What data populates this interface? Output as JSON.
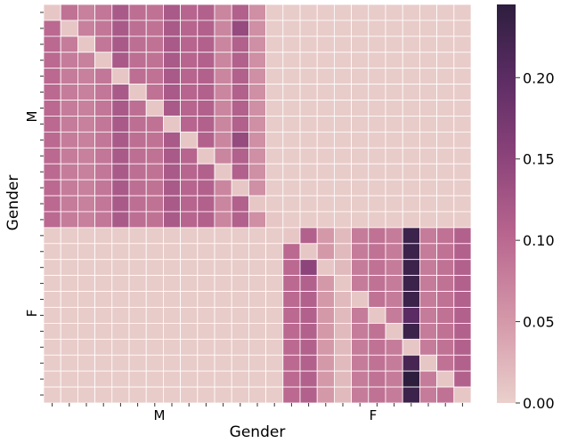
{
  "chart_data": {
    "type": "heatmap",
    "title": "",
    "xlabel": "Gender",
    "ylabel": "Gender",
    "x_group_labels": [
      "M",
      "F"
    ],
    "y_group_labels": [
      "M",
      "F"
    ],
    "group_sizes": [
      14,
      11
    ],
    "n": 25,
    "colorbar": {
      "min": 0.0,
      "max": 0.245,
      "ticks": [
        0.0,
        0.05,
        0.1,
        0.15,
        0.2
      ],
      "tick_labels": [
        "0.00",
        "0.05",
        "0.10",
        "0.15",
        "0.20"
      ],
      "colors": [
        "#ead0cc",
        "#d59aaa",
        "#b9668f",
        "#8b437a",
        "#5a2c63",
        "#2d1e3e"
      ]
    },
    "matrix": [
      [
        0.008,
        0.09,
        0.075,
        0.085,
        0.12,
        0.095,
        0.09,
        0.12,
        0.105,
        0.11,
        0.07,
        0.11,
        0.06,
        0.004,
        0.004,
        0.004,
        0.004,
        0.004,
        0.004,
        0.004,
        0.004,
        0.004,
        0.004,
        0.004,
        0.004
      ],
      [
        0.1,
        0.008,
        0.075,
        0.085,
        0.12,
        0.095,
        0.09,
        0.12,
        0.105,
        0.11,
        0.07,
        0.14,
        0.06,
        0.004,
        0.004,
        0.004,
        0.004,
        0.004,
        0.004,
        0.004,
        0.004,
        0.004,
        0.004,
        0.004,
        0.004
      ],
      [
        0.1,
        0.08,
        0.008,
        0.085,
        0.12,
        0.095,
        0.09,
        0.12,
        0.105,
        0.11,
        0.07,
        0.11,
        0.06,
        0.004,
        0.004,
        0.004,
        0.004,
        0.004,
        0.004,
        0.004,
        0.004,
        0.004,
        0.004,
        0.004,
        0.004
      ],
      [
        0.1,
        0.08,
        0.075,
        0.008,
        0.12,
        0.095,
        0.09,
        0.12,
        0.105,
        0.11,
        0.07,
        0.11,
        0.06,
        0.004,
        0.004,
        0.004,
        0.004,
        0.004,
        0.004,
        0.004,
        0.004,
        0.004,
        0.004,
        0.004,
        0.004
      ],
      [
        0.1,
        0.08,
        0.075,
        0.085,
        0.008,
        0.095,
        0.09,
        0.12,
        0.105,
        0.11,
        0.07,
        0.11,
        0.06,
        0.004,
        0.004,
        0.004,
        0.004,
        0.004,
        0.004,
        0.004,
        0.004,
        0.004,
        0.004,
        0.004,
        0.004
      ],
      [
        0.1,
        0.08,
        0.075,
        0.085,
        0.12,
        0.008,
        0.09,
        0.12,
        0.105,
        0.11,
        0.07,
        0.11,
        0.06,
        0.004,
        0.004,
        0.004,
        0.004,
        0.004,
        0.004,
        0.004,
        0.004,
        0.004,
        0.004,
        0.004,
        0.004
      ],
      [
        0.1,
        0.08,
        0.075,
        0.085,
        0.12,
        0.095,
        0.008,
        0.12,
        0.105,
        0.11,
        0.07,
        0.11,
        0.06,
        0.004,
        0.004,
        0.004,
        0.004,
        0.004,
        0.004,
        0.004,
        0.004,
        0.004,
        0.004,
        0.004,
        0.004
      ],
      [
        0.1,
        0.08,
        0.075,
        0.085,
        0.12,
        0.095,
        0.09,
        0.008,
        0.105,
        0.11,
        0.07,
        0.11,
        0.06,
        0.004,
        0.004,
        0.004,
        0.004,
        0.004,
        0.004,
        0.004,
        0.004,
        0.004,
        0.004,
        0.004,
        0.004
      ],
      [
        0.1,
        0.08,
        0.075,
        0.085,
        0.12,
        0.095,
        0.09,
        0.12,
        0.008,
        0.11,
        0.07,
        0.14,
        0.06,
        0.004,
        0.004,
        0.004,
        0.004,
        0.004,
        0.004,
        0.004,
        0.004,
        0.004,
        0.004,
        0.004,
        0.004
      ],
      [
        0.1,
        0.08,
        0.075,
        0.085,
        0.12,
        0.095,
        0.09,
        0.12,
        0.105,
        0.008,
        0.07,
        0.11,
        0.06,
        0.004,
        0.004,
        0.004,
        0.004,
        0.004,
        0.004,
        0.004,
        0.004,
        0.004,
        0.004,
        0.004,
        0.004
      ],
      [
        0.1,
        0.08,
        0.075,
        0.085,
        0.12,
        0.095,
        0.09,
        0.12,
        0.105,
        0.11,
        0.008,
        0.11,
        0.06,
        0.004,
        0.004,
        0.004,
        0.004,
        0.004,
        0.004,
        0.004,
        0.004,
        0.004,
        0.004,
        0.004,
        0.004
      ],
      [
        0.1,
        0.08,
        0.075,
        0.085,
        0.12,
        0.095,
        0.09,
        0.12,
        0.105,
        0.11,
        0.07,
        0.008,
        0.06,
        0.004,
        0.004,
        0.004,
        0.004,
        0.004,
        0.004,
        0.004,
        0.004,
        0.004,
        0.004,
        0.004,
        0.004
      ],
      [
        0.1,
        0.08,
        0.075,
        0.085,
        0.12,
        0.095,
        0.09,
        0.12,
        0.105,
        0.11,
        0.07,
        0.11,
        0.008,
        0.004,
        0.004,
        0.004,
        0.004,
        0.004,
        0.004,
        0.004,
        0.004,
        0.004,
        0.004,
        0.004,
        0.004
      ],
      [
        0.1,
        0.08,
        0.075,
        0.085,
        0.12,
        0.095,
        0.09,
        0.12,
        0.105,
        0.11,
        0.07,
        0.11,
        0.06,
        0.008,
        0.004,
        0.004,
        0.004,
        0.004,
        0.004,
        0.004,
        0.004,
        0.004,
        0.004,
        0.004,
        0.004
      ],
      [
        0.004,
        0.004,
        0.004,
        0.004,
        0.004,
        0.004,
        0.004,
        0.004,
        0.004,
        0.004,
        0.004,
        0.004,
        0.004,
        0.004,
        0.008,
        0.11,
        0.05,
        0.02,
        0.08,
        0.09,
        0.08,
        0.23,
        0.08,
        0.09,
        0.11
      ],
      [
        0.004,
        0.004,
        0.004,
        0.004,
        0.004,
        0.004,
        0.004,
        0.004,
        0.004,
        0.004,
        0.004,
        0.004,
        0.004,
        0.004,
        0.1,
        0.008,
        0.05,
        0.02,
        0.08,
        0.09,
        0.08,
        0.23,
        0.08,
        0.09,
        0.11
      ],
      [
        0.004,
        0.004,
        0.004,
        0.004,
        0.004,
        0.004,
        0.004,
        0.004,
        0.004,
        0.004,
        0.004,
        0.004,
        0.004,
        0.004,
        0.1,
        0.15,
        0.008,
        0.02,
        0.08,
        0.09,
        0.08,
        0.23,
        0.08,
        0.09,
        0.11
      ],
      [
        0.004,
        0.004,
        0.004,
        0.004,
        0.004,
        0.004,
        0.004,
        0.004,
        0.004,
        0.004,
        0.004,
        0.004,
        0.004,
        0.004,
        0.1,
        0.11,
        0.05,
        0.008,
        0.08,
        0.09,
        0.08,
        0.23,
        0.08,
        0.09,
        0.11
      ],
      [
        0.004,
        0.004,
        0.004,
        0.004,
        0.004,
        0.004,
        0.004,
        0.004,
        0.004,
        0.004,
        0.004,
        0.004,
        0.004,
        0.004,
        0.1,
        0.11,
        0.05,
        0.02,
        0.008,
        0.09,
        0.08,
        0.23,
        0.08,
        0.09,
        0.11
      ],
      [
        0.004,
        0.004,
        0.004,
        0.004,
        0.004,
        0.004,
        0.004,
        0.004,
        0.004,
        0.004,
        0.004,
        0.004,
        0.004,
        0.004,
        0.1,
        0.11,
        0.05,
        0.02,
        0.08,
        0.008,
        0.08,
        0.2,
        0.08,
        0.09,
        0.11
      ],
      [
        0.004,
        0.004,
        0.004,
        0.004,
        0.004,
        0.004,
        0.004,
        0.004,
        0.004,
        0.004,
        0.004,
        0.004,
        0.004,
        0.004,
        0.1,
        0.11,
        0.05,
        0.02,
        0.08,
        0.09,
        0.008,
        0.23,
        0.08,
        0.09,
        0.11
      ],
      [
        0.004,
        0.004,
        0.004,
        0.004,
        0.004,
        0.004,
        0.004,
        0.004,
        0.004,
        0.004,
        0.004,
        0.004,
        0.004,
        0.004,
        0.1,
        0.11,
        0.05,
        0.02,
        0.08,
        0.09,
        0.08,
        0.008,
        0.08,
        0.09,
        0.11
      ],
      [
        0.004,
        0.004,
        0.004,
        0.004,
        0.004,
        0.004,
        0.004,
        0.004,
        0.004,
        0.004,
        0.004,
        0.004,
        0.004,
        0.004,
        0.1,
        0.11,
        0.05,
        0.02,
        0.08,
        0.09,
        0.08,
        0.22,
        0.008,
        0.09,
        0.11
      ],
      [
        0.004,
        0.004,
        0.004,
        0.004,
        0.004,
        0.004,
        0.004,
        0.004,
        0.004,
        0.004,
        0.004,
        0.004,
        0.004,
        0.004,
        0.1,
        0.11,
        0.05,
        0.02,
        0.08,
        0.09,
        0.08,
        0.245,
        0.08,
        0.008,
        0.11
      ],
      [
        0.004,
        0.004,
        0.004,
        0.004,
        0.004,
        0.004,
        0.004,
        0.004,
        0.004,
        0.004,
        0.004,
        0.004,
        0.004,
        0.004,
        0.1,
        0.11,
        0.05,
        0.02,
        0.08,
        0.09,
        0.08,
        0.23,
        0.08,
        0.09,
        0.008
      ]
    ]
  }
}
